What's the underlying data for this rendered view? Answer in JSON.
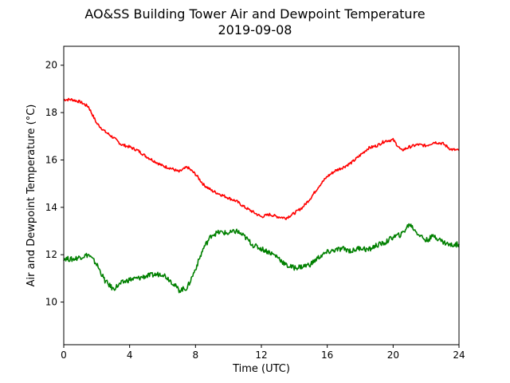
{
  "chart_data": {
    "type": "line",
    "title": "AO&SS Building Tower Air and Dewpoint Temperature",
    "subtitle": "2019-09-08",
    "xlabel": "Time (UTC)",
    "ylabel": "Air and Dewpoint Temperature (°C)",
    "xlim": [
      0,
      24
    ],
    "ylim": [
      8.2,
      20.8
    ],
    "xticks": [
      0,
      4,
      8,
      12,
      16,
      20,
      24
    ],
    "yticks": [
      10,
      12,
      14,
      16,
      18,
      20
    ],
    "grid": false,
    "series": [
      {
        "color": "#ff0000",
        "x": [
          0,
          0.5,
          1.0,
          1.5,
          2.0,
          2.5,
          3.0,
          3.5,
          4.0,
          4.5,
          5.0,
          5.5,
          6.0,
          6.5,
          7.0,
          7.5,
          8.0,
          8.5,
          9.0,
          9.5,
          10.0,
          10.5,
          11.0,
          11.5,
          12.0,
          12.5,
          13.0,
          13.5,
          14.0,
          14.5,
          15.0,
          15.5,
          16.0,
          16.5,
          17.0,
          17.5,
          18.0,
          18.5,
          19.0,
          19.5,
          20.0,
          20.5,
          21.0,
          21.5,
          22.0,
          22.5,
          23.0,
          23.5,
          24.0
        ],
        "y": [
          18.55,
          18.55,
          18.45,
          18.25,
          17.55,
          17.2,
          16.95,
          16.65,
          16.55,
          16.4,
          16.15,
          15.95,
          15.75,
          15.65,
          15.5,
          15.7,
          15.4,
          14.95,
          14.7,
          14.55,
          14.4,
          14.25,
          14.0,
          13.8,
          13.6,
          13.7,
          13.6,
          13.55,
          13.75,
          14.0,
          14.4,
          14.9,
          15.3,
          15.55,
          15.7,
          15.9,
          16.2,
          16.5,
          16.6,
          16.8,
          16.85,
          16.4,
          16.55,
          16.65,
          16.6,
          16.75,
          16.7,
          16.45,
          16.4
        ]
      },
      {
        "color": "#008000",
        "x": [
          0,
          0.5,
          1.0,
          1.5,
          2.0,
          2.5,
          3.0,
          3.5,
          4.0,
          4.5,
          5.0,
          5.5,
          6.0,
          6.5,
          7.0,
          7.5,
          8.0,
          8.5,
          9.0,
          9.5,
          10.0,
          10.5,
          11.0,
          11.5,
          12.0,
          12.5,
          13.0,
          13.5,
          14.0,
          14.5,
          15.0,
          15.5,
          16.0,
          16.5,
          17.0,
          17.5,
          18.0,
          18.5,
          19.0,
          19.5,
          20.0,
          20.5,
          21.0,
          21.5,
          22.0,
          22.5,
          23.0,
          23.5,
          24.0
        ],
        "y": [
          11.85,
          11.8,
          11.9,
          12.0,
          11.6,
          10.9,
          10.55,
          10.8,
          10.95,
          11.0,
          11.1,
          11.15,
          11.2,
          10.9,
          10.5,
          10.6,
          11.4,
          12.3,
          12.85,
          12.95,
          12.9,
          13.0,
          12.75,
          12.4,
          12.25,
          12.1,
          11.9,
          11.55,
          11.45,
          11.5,
          11.6,
          11.9,
          12.1,
          12.2,
          12.25,
          12.15,
          12.3,
          12.2,
          12.4,
          12.5,
          12.75,
          12.85,
          13.3,
          12.9,
          12.6,
          12.8,
          12.55,
          12.4,
          12.45
        ]
      }
    ]
  }
}
